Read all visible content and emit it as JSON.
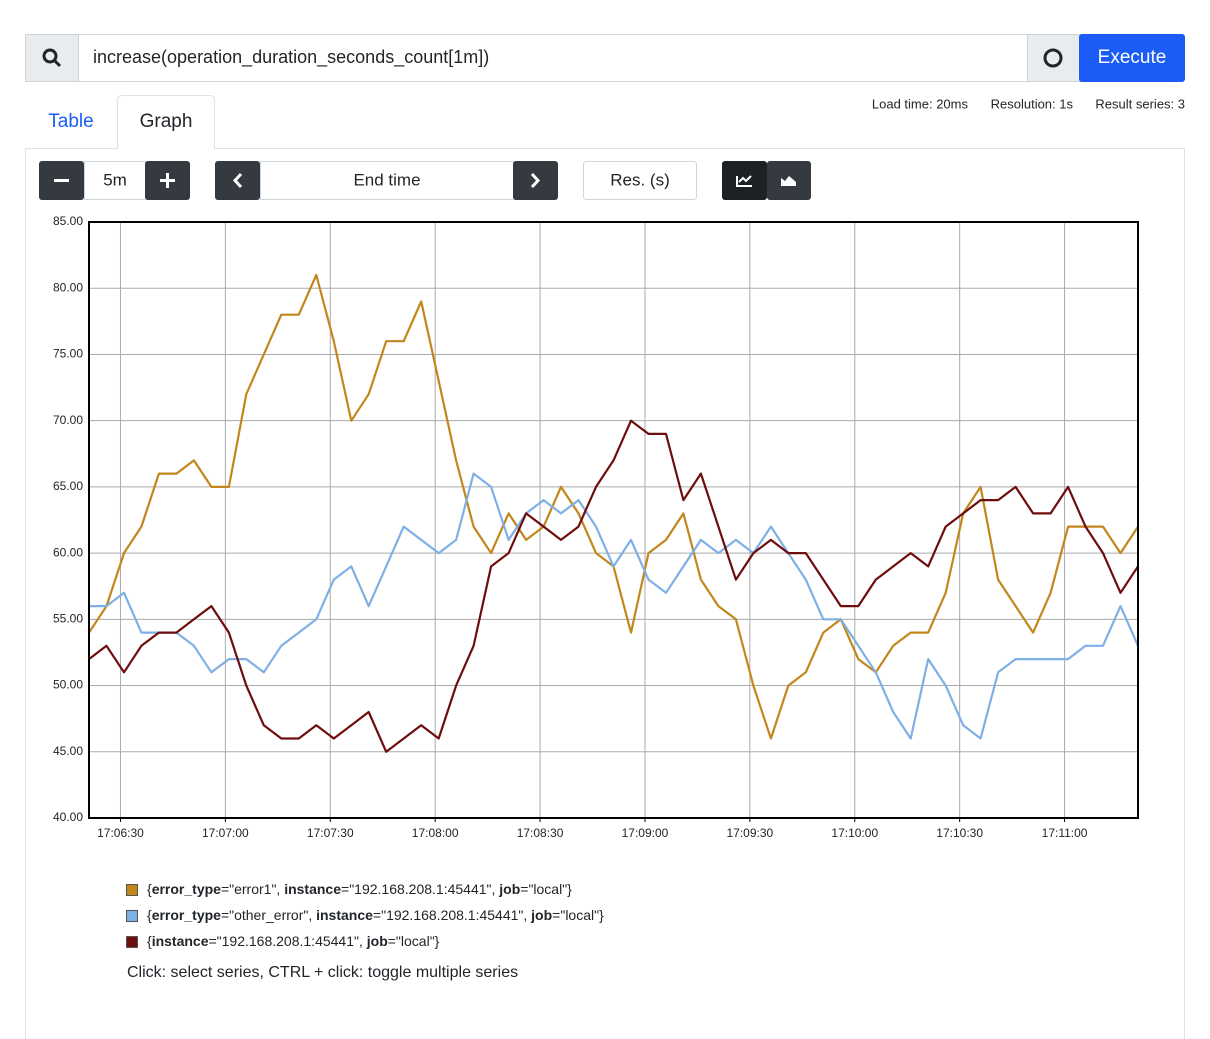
{
  "query_bar": {
    "query": "increase(operation_duration_seconds_count[1m])",
    "execute": "Execute"
  },
  "tabs": [
    "Table",
    "Graph"
  ],
  "stats": {
    "load_time": "Load time: 20ms",
    "resolution": "Resolution: 1s",
    "result_series": "Result series: 3"
  },
  "controls": {
    "range": "5m",
    "end_time": "End time",
    "resolution": "Res. (s)"
  },
  "chart_data": {
    "type": "line",
    "x": [
      "17:06:21",
      "17:06:26",
      "17:06:31",
      "17:06:36",
      "17:06:41",
      "17:06:46",
      "17:06:51",
      "17:06:56",
      "17:07:01",
      "17:07:06",
      "17:07:11",
      "17:07:16",
      "17:07:21",
      "17:07:26",
      "17:07:31",
      "17:07:36",
      "17:07:41",
      "17:07:46",
      "17:07:51",
      "17:07:56",
      "17:08:01",
      "17:08:06",
      "17:08:11",
      "17:08:16",
      "17:08:21",
      "17:08:26",
      "17:08:31",
      "17:08:36",
      "17:08:41",
      "17:08:46",
      "17:08:51",
      "17:08:56",
      "17:09:01",
      "17:09:06",
      "17:09:11",
      "17:09:16",
      "17:09:21",
      "17:09:26",
      "17:09:31",
      "17:09:36",
      "17:09:41",
      "17:09:46",
      "17:09:51",
      "17:09:56",
      "17:10:01",
      "17:10:06",
      "17:10:11",
      "17:10:16",
      "17:10:21",
      "17:10:26",
      "17:10:31",
      "17:10:36",
      "17:10:41",
      "17:10:46",
      "17:10:51",
      "17:10:56",
      "17:11:01",
      "17:11:06",
      "17:11:11",
      "17:11:16",
      "17:11:21"
    ],
    "series": [
      {
        "name": "{error_type=\"error1\", instance=\"192.168.208.1:45441\", job=\"local\"}",
        "color": "#c1871c",
        "values": [
          54,
          56,
          60,
          62,
          66,
          66,
          67,
          65,
          65,
          72,
          75,
          78,
          78,
          81,
          76,
          70,
          72,
          76,
          76,
          79,
          73,
          67,
          62,
          60,
          63,
          61,
          62,
          65,
          63,
          60,
          59,
          54,
          60,
          61,
          63,
          58,
          56,
          55,
          50,
          46,
          50,
          51,
          54,
          55,
          52,
          51,
          53,
          54,
          54,
          57,
          63,
          65,
          58,
          56,
          54,
          57,
          62,
          62,
          62,
          60,
          62
        ]
      },
      {
        "name": "{error_type=\"other_error\", instance=\"192.168.208.1:45441\", job=\"local\"}",
        "color": "#7eb0e6",
        "values": [
          56,
          56,
          57,
          54,
          54,
          54,
          53,
          51,
          52,
          52,
          51,
          53,
          54,
          55,
          58,
          59,
          56,
          59,
          62,
          61,
          60,
          61,
          66,
          65,
          61,
          63,
          64,
          63,
          64,
          62,
          59,
          61,
          58,
          57,
          59,
          61,
          60,
          61,
          60,
          62,
          60,
          58,
          55,
          55,
          53,
          51,
          48,
          46,
          52,
          50,
          47,
          46,
          51,
          52,
          52,
          52,
          52,
          53,
          53,
          56,
          53
        ]
      },
      {
        "name": "{instance=\"192.168.208.1:45441\", job=\"local\"}",
        "color": "#6e0d0d",
        "values": [
          52,
          53,
          51,
          53,
          54,
          54,
          55,
          56,
          54,
          50,
          47,
          46,
          46,
          47,
          46,
          47,
          48,
          45,
          46,
          47,
          46,
          50,
          53,
          59,
          60,
          63,
          62,
          61,
          62,
          65,
          67,
          70,
          69,
          69,
          64,
          66,
          62,
          58,
          60,
          61,
          60,
          60,
          58,
          56,
          56,
          58,
          59,
          60,
          59,
          62,
          63,
          64,
          64,
          65,
          63,
          63,
          65,
          62,
          60,
          57,
          59
        ]
      }
    ],
    "xlim": [
      "17:06:21",
      "17:11:21"
    ],
    "xticks": [
      "17:06:30",
      "17:07:00",
      "17:07:30",
      "17:08:00",
      "17:08:30",
      "17:09:00",
      "17:09:30",
      "17:10:00",
      "17:10:30",
      "17:11:00"
    ],
    "ylim": [
      40,
      85
    ],
    "yticks": [
      {
        "value": 40,
        "label": "40.00"
      },
      {
        "value": 45,
        "label": "45.00"
      },
      {
        "value": 50,
        "label": "50.00"
      },
      {
        "value": 55,
        "label": "55.00"
      },
      {
        "value": 60,
        "label": "60.00"
      },
      {
        "value": 65,
        "label": "65.00"
      },
      {
        "value": 70,
        "label": "70.00"
      },
      {
        "value": 75,
        "label": "75.00"
      },
      {
        "value": 80,
        "label": "80.00"
      },
      {
        "value": 85,
        "label": "85.00"
      }
    ],
    "grid": true
  },
  "hint": "Click: select series, CTRL + click: toggle multiple series"
}
